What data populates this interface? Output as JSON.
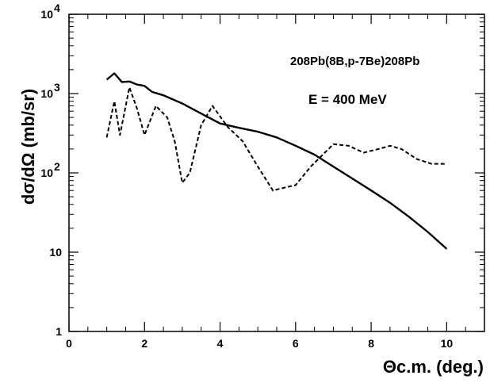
{
  "chart_data": {
    "type": "line",
    "title": "",
    "xlabel": "Θc.m. (deg.)",
    "ylabel": "dσ/dΩ (mb/sr)",
    "xlim": [
      0,
      11
    ],
    "ylim": [
      1,
      10000
    ],
    "yscale": "log",
    "grid": false,
    "x_ticks": [
      0,
      2,
      4,
      6,
      8,
      10
    ],
    "y_ticks": [
      {
        "value": 1,
        "label": "1"
      },
      {
        "value": 10,
        "label": "10"
      },
      {
        "value": 100,
        "label": "10",
        "exp": "2"
      },
      {
        "value": 1000,
        "label": "10",
        "exp": "3"
      },
      {
        "value": 10000,
        "label": "10",
        "exp": "4"
      }
    ],
    "annotations": {
      "reaction": "208Pb(8B,p-7Be)208Pb",
      "energy": "E = 400 MeV"
    },
    "series": [
      {
        "style": "solid",
        "x": [
          1.0,
          1.2,
          1.4,
          1.6,
          1.8,
          2.0,
          2.2,
          2.5,
          3.0,
          3.5,
          4.0,
          4.5,
          5.0,
          5.5,
          6.0,
          6.5,
          7.0,
          7.5,
          8.0,
          8.5,
          9.0,
          9.5,
          10.0
        ],
        "y": [
          1500,
          1800,
          1400,
          1420,
          1300,
          1250,
          1050,
          950,
          750,
          560,
          420,
          370,
          330,
          280,
          220,
          170,
          120,
          85,
          60,
          42,
          28,
          18,
          11
        ]
      },
      {
        "style": "dashed",
        "x": [
          1.0,
          1.2,
          1.35,
          1.6,
          1.8,
          2.0,
          2.3,
          2.6,
          2.8,
          3.0,
          3.2,
          3.5,
          3.8,
          4.2,
          4.6,
          5.0,
          5.4,
          5.7,
          6.0,
          6.4,
          7.0,
          7.4,
          7.8,
          8.2,
          8.5,
          8.8,
          9.2,
          9.6,
          10.0
        ],
        "y": [
          280,
          800,
          300,
          1200,
          650,
          300,
          700,
          500,
          250,
          75,
          100,
          400,
          700,
          380,
          250,
          120,
          60,
          65,
          70,
          120,
          230,
          220,
          180,
          200,
          220,
          200,
          150,
          130,
          130
        ]
      }
    ]
  }
}
